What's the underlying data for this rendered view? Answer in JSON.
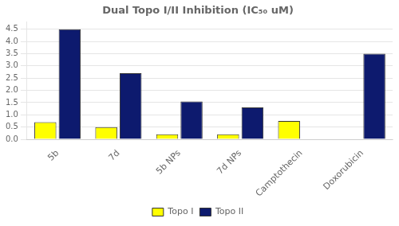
{
  "chart_data": {
    "type": "bar",
    "title": "Dual Topo I/II Inhibition (IC₅₀ uM)",
    "categories": [
      "5b",
      "7d",
      "5b NPs",
      "7d NPs",
      "Camptothecin",
      "Doxorubicin"
    ],
    "series": [
      {
        "name": "Topo I",
        "color": "#FFFF00",
        "values": [
          0.7,
          0.5,
          0.2,
          0.2,
          0.75,
          0.0
        ]
      },
      {
        "name": "Topo II",
        "color": "#0D1A6E",
        "values": [
          4.5,
          2.7,
          1.55,
          1.3,
          0.0,
          3.5
        ]
      }
    ],
    "ylim": [
      0,
      4.8
    ],
    "yticks": [
      {
        "value": 0,
        "label": "0.0"
      },
      0.5,
      {
        "value": 1,
        "label": "1.0"
      },
      1.5,
      {
        "value": 2,
        "label": "2.0"
      },
      2.5,
      {
        "value": 3,
        "label": "3.0"
      },
      3.5,
      {
        "value": 4,
        "label": "4.0"
      },
      4.5
    ],
    "grid": true,
    "legend": "bottom"
  }
}
